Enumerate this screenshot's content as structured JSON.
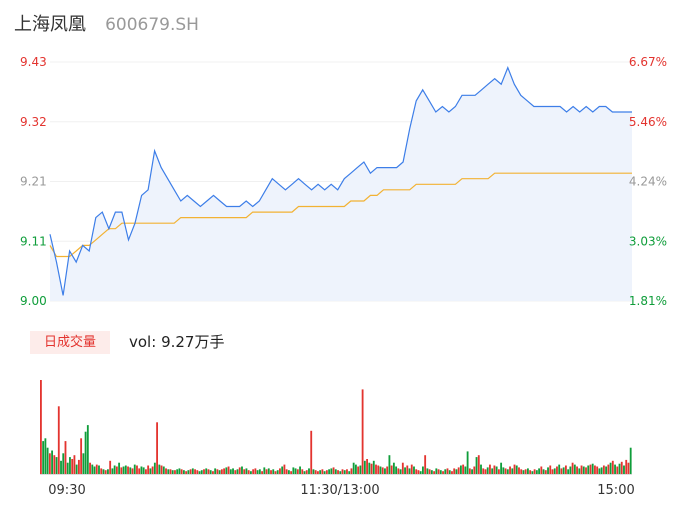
{
  "header": {
    "stock_name": "上海凤凰",
    "stock_code": "600679.SH"
  },
  "volume_panel": {
    "badge_label": "日成交量",
    "readout_label": "vol:",
    "readout_value": "9.27万手"
  },
  "colors": {
    "up": "#e3342f",
    "down": "#0f9d3a",
    "neutral": "#999999",
    "price_line": "#3d7ee8",
    "avg_line": "#f2b233",
    "price_fill": "#eef3fc"
  },
  "chart_data": [
    {
      "type": "line",
      "y_ticks_left": [
        "9.43",
        "9.32",
        "9.21",
        "9.11",
        "9.00"
      ],
      "y_ticks_right": [
        "6.67%",
        "5.46%",
        "4.24%",
        "3.03%",
        "1.81%"
      ],
      "ylim": [
        9.0,
        9.43
      ],
      "x_ticks": [
        "09:30",
        "11:30/13:00",
        "15:00"
      ],
      "series": [
        {
          "values": [
            9.12,
            9.07,
            9.01,
            9.09,
            9.07,
            9.1,
            9.09,
            9.15,
            9.16,
            9.13,
            9.16,
            9.16,
            9.11,
            9.14,
            9.19,
            9.2,
            9.27,
            9.24,
            9.22,
            9.2,
            9.18,
            9.19,
            9.18,
            9.17,
            9.18,
            9.19,
            9.18,
            9.17,
            9.17,
            9.17,
            9.18,
            9.17,
            9.18,
            9.2,
            9.22,
            9.21,
            9.2,
            9.21,
            9.22,
            9.21,
            9.2,
            9.21,
            9.2,
            9.21,
            9.2,
            9.22,
            9.23,
            9.24,
            9.25,
            9.23,
            9.24,
            9.24,
            9.24,
            9.24,
            9.25,
            9.31,
            9.36,
            9.38,
            9.36,
            9.34,
            9.35,
            9.34,
            9.35,
            9.37,
            9.37,
            9.37,
            9.38,
            9.39,
            9.4,
            9.39,
            9.42,
            9.39,
            9.37,
            9.36,
            9.35,
            9.35,
            9.35,
            9.35,
            9.35,
            9.34,
            9.35,
            9.34,
            9.35,
            9.34,
            9.35,
            9.35,
            9.34,
            9.34,
            9.34,
            9.34
          ]
        },
        {
          "values": [
            9.1,
            9.08,
            9.08,
            9.08,
            9.09,
            9.1,
            9.1,
            9.11,
            9.12,
            9.13,
            9.13,
            9.14,
            9.14,
            9.14,
            9.14,
            9.14,
            9.14,
            9.14,
            9.14,
            9.14,
            9.15,
            9.15,
            9.15,
            9.15,
            9.15,
            9.15,
            9.15,
            9.15,
            9.15,
            9.15,
            9.15,
            9.16,
            9.16,
            9.16,
            9.16,
            9.16,
            9.16,
            9.16,
            9.17,
            9.17,
            9.17,
            9.17,
            9.17,
            9.17,
            9.17,
            9.17,
            9.18,
            9.18,
            9.18,
            9.19,
            9.19,
            9.2,
            9.2,
            9.2,
            9.2,
            9.2,
            9.21,
            9.21,
            9.21,
            9.21,
            9.21,
            9.21,
            9.21,
            9.22,
            9.22,
            9.22,
            9.22,
            9.22,
            9.23,
            9.23,
            9.23,
            9.23,
            9.23,
            9.23,
            9.23,
            9.23,
            9.23,
            9.23,
            9.23,
            9.23,
            9.23,
            9.23,
            9.23,
            9.23,
            9.23,
            9.23,
            9.23,
            9.23,
            9.23,
            9.23
          ]
        }
      ]
    },
    {
      "type": "bar",
      "ylim": [
        0,
        100
      ],
      "series": [
        {
          "values": [
            100,
            35,
            38,
            28,
            22,
            25,
            20,
            18,
            72,
            14,
            22,
            35,
            12,
            18,
            16,
            20,
            10,
            15,
            38,
            22,
            45,
            52,
            12,
            10,
            8,
            10,
            9,
            6,
            5,
            4,
            5,
            14,
            6,
            9,
            8,
            12,
            7,
            8,
            9,
            8,
            7,
            6,
            10,
            9,
            6,
            8,
            7,
            5,
            9,
            6,
            8,
            12,
            55,
            10,
            9,
            8,
            6,
            5,
            5,
            4,
            4,
            5,
            6,
            5,
            4,
            3,
            4,
            5,
            6,
            5,
            4,
            3,
            4,
            5,
            6,
            5,
            4,
            3,
            6,
            5,
            4,
            5,
            6,
            7,
            8,
            5,
            6,
            4,
            5,
            7,
            8,
            5,
            6,
            4,
            3,
            5,
            6,
            4,
            5,
            3,
            7,
            5,
            6,
            4,
            5,
            3,
            4,
            6,
            8,
            10,
            5,
            4,
            3,
            7,
            6,
            5,
            8,
            5,
            3,
            4,
            6,
            46,
            5,
            4,
            3,
            4,
            5,
            3,
            4,
            5,
            6,
            7,
            5,
            4,
            3,
            5,
            4,
            5,
            3,
            6,
            12,
            10,
            8,
            9,
            90,
            14,
            16,
            12,
            11,
            14,
            10,
            9,
            8,
            7,
            6,
            8,
            20,
            9,
            12,
            8,
            6,
            5,
            12,
            7,
            9,
            6,
            10,
            8,
            5,
            4,
            3,
            8,
            20,
            6,
            5,
            4,
            3,
            6,
            5,
            4,
            3,
            5,
            6,
            4,
            3,
            6,
            5,
            7,
            9,
            10,
            8,
            24,
            6,
            5,
            8,
            18,
            20,
            10,
            6,
            5,
            7,
            10,
            6,
            9,
            8,
            5,
            12,
            7,
            6,
            5,
            8,
            6,
            10,
            9,
            7,
            5,
            4,
            5,
            6,
            4,
            3,
            5,
            4,
            6,
            8,
            5,
            4,
            7,
            9,
            5,
            6,
            8,
            10,
            6,
            7,
            9,
            5,
            8,
            12,
            10,
            8,
            6,
            9,
            8,
            7,
            9,
            10,
            11,
            9,
            8,
            6,
            7,
            9,
            8,
            10,
            12,
            14,
            10,
            8,
            11,
            13,
            9,
            15,
            12,
            28
          ]
        },
        {
          "values": [
            0,
            1,
            1,
            1,
            0,
            1,
            0,
            1,
            0,
            1,
            1,
            0,
            1,
            1,
            0,
            0,
            1,
            0,
            0,
            1,
            1,
            1,
            0,
            1,
            1,
            0,
            1,
            0,
            1,
            0,
            1,
            0,
            1,
            1,
            0,
            1,
            0,
            1,
            1,
            0,
            1,
            0,
            1,
            0,
            0,
            1,
            1,
            0,
            0,
            1,
            0,
            1,
            0,
            1,
            0,
            1,
            0,
            1,
            0,
            1,
            0,
            1,
            1,
            0,
            1,
            0,
            1,
            0,
            1,
            0,
            0,
            1,
            1,
            0,
            1,
            0,
            1,
            0,
            1,
            0,
            1,
            0,
            0,
            1,
            0,
            1,
            1,
            0,
            1,
            0,
            1,
            0,
            1,
            0,
            1,
            0,
            0,
            1,
            1,
            0,
            1,
            0,
            1,
            0,
            1,
            0,
            1,
            0,
            1,
            0,
            0,
            1,
            0,
            1,
            1,
            0,
            1,
            0,
            1,
            0,
            1,
            0,
            1,
            0,
            0,
            1,
            0,
            1,
            0,
            1,
            1,
            0,
            1,
            0,
            1,
            0,
            1,
            0,
            1,
            0,
            1,
            1,
            0,
            1,
            0,
            1,
            0,
            1,
            0,
            1,
            0,
            0,
            1,
            0,
            1,
            0,
            1,
            0,
            1,
            1,
            0,
            1,
            0,
            1,
            0,
            1,
            0,
            1,
            0,
            0,
            1,
            1,
            0,
            1,
            0,
            1,
            0,
            1,
            0,
            1,
            0,
            1,
            0,
            1,
            0,
            0,
            1,
            0,
            1,
            0,
            1,
            1,
            0,
            1,
            0,
            1,
            0,
            1,
            0,
            0,
            1,
            0,
            1,
            0,
            1,
            0,
            1,
            1,
            0,
            1,
            0,
            1,
            0,
            1,
            0,
            0,
            1,
            0,
            1,
            0,
            1,
            0,
            1,
            1,
            0,
            1,
            0,
            1,
            0,
            0,
            1,
            0,
            1,
            0,
            1,
            0,
            1,
            1,
            0,
            1,
            0,
            1,
            0,
            1,
            0,
            1,
            0,
            1,
            0,
            0,
            1,
            1,
            0,
            1,
            0,
            1,
            0,
            1,
            0,
            1,
            0,
            1,
            0,
            0,
            1,
            0,
            1,
            0,
            1,
            0,
            1,
            0,
            0,
            1,
            0,
            1,
            0,
            1,
            0,
            1
          ]
        }
      ]
    }
  ]
}
